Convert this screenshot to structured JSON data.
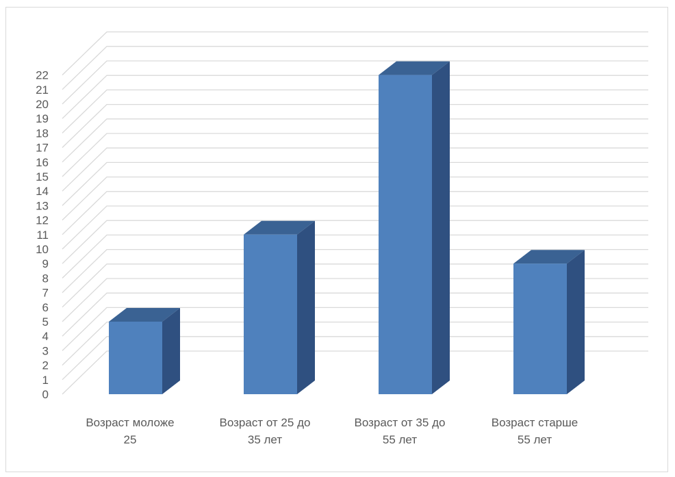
{
  "chart_data": {
    "type": "bar",
    "style": "3d-column",
    "categories": [
      "Возраст моложе 25",
      "Возраст от 25 до 35 лет",
      "Возраст от 35 до 55 лет",
      "Возраст  старше 55 лет"
    ],
    "category_lines": [
      [
        "Возраст моложе",
        "25"
      ],
      [
        "Возраст от 25 до",
        "35 лет"
      ],
      [
        "Возраст от 35 до",
        "55 лет"
      ],
      [
        "Возраст  старше",
        "55 лет"
      ]
    ],
    "series": [
      {
        "values": [
          5,
          11,
          22,
          9
        ]
      }
    ],
    "ylim": [
      0,
      22
    ],
    "yticks": [
      0,
      1,
      2,
      3,
      4,
      5,
      6,
      7,
      8,
      9,
      10,
      11,
      12,
      13,
      14,
      15,
      16,
      17,
      18,
      19,
      20,
      21,
      22
    ],
    "grid": true,
    "legend": "none",
    "colors": {
      "bar_front": "#4f81bd",
      "bar_side": "#2f5080",
      "bar_top": "#3a6293",
      "grid": "#d9d9d9",
      "text": "#595959"
    }
  }
}
